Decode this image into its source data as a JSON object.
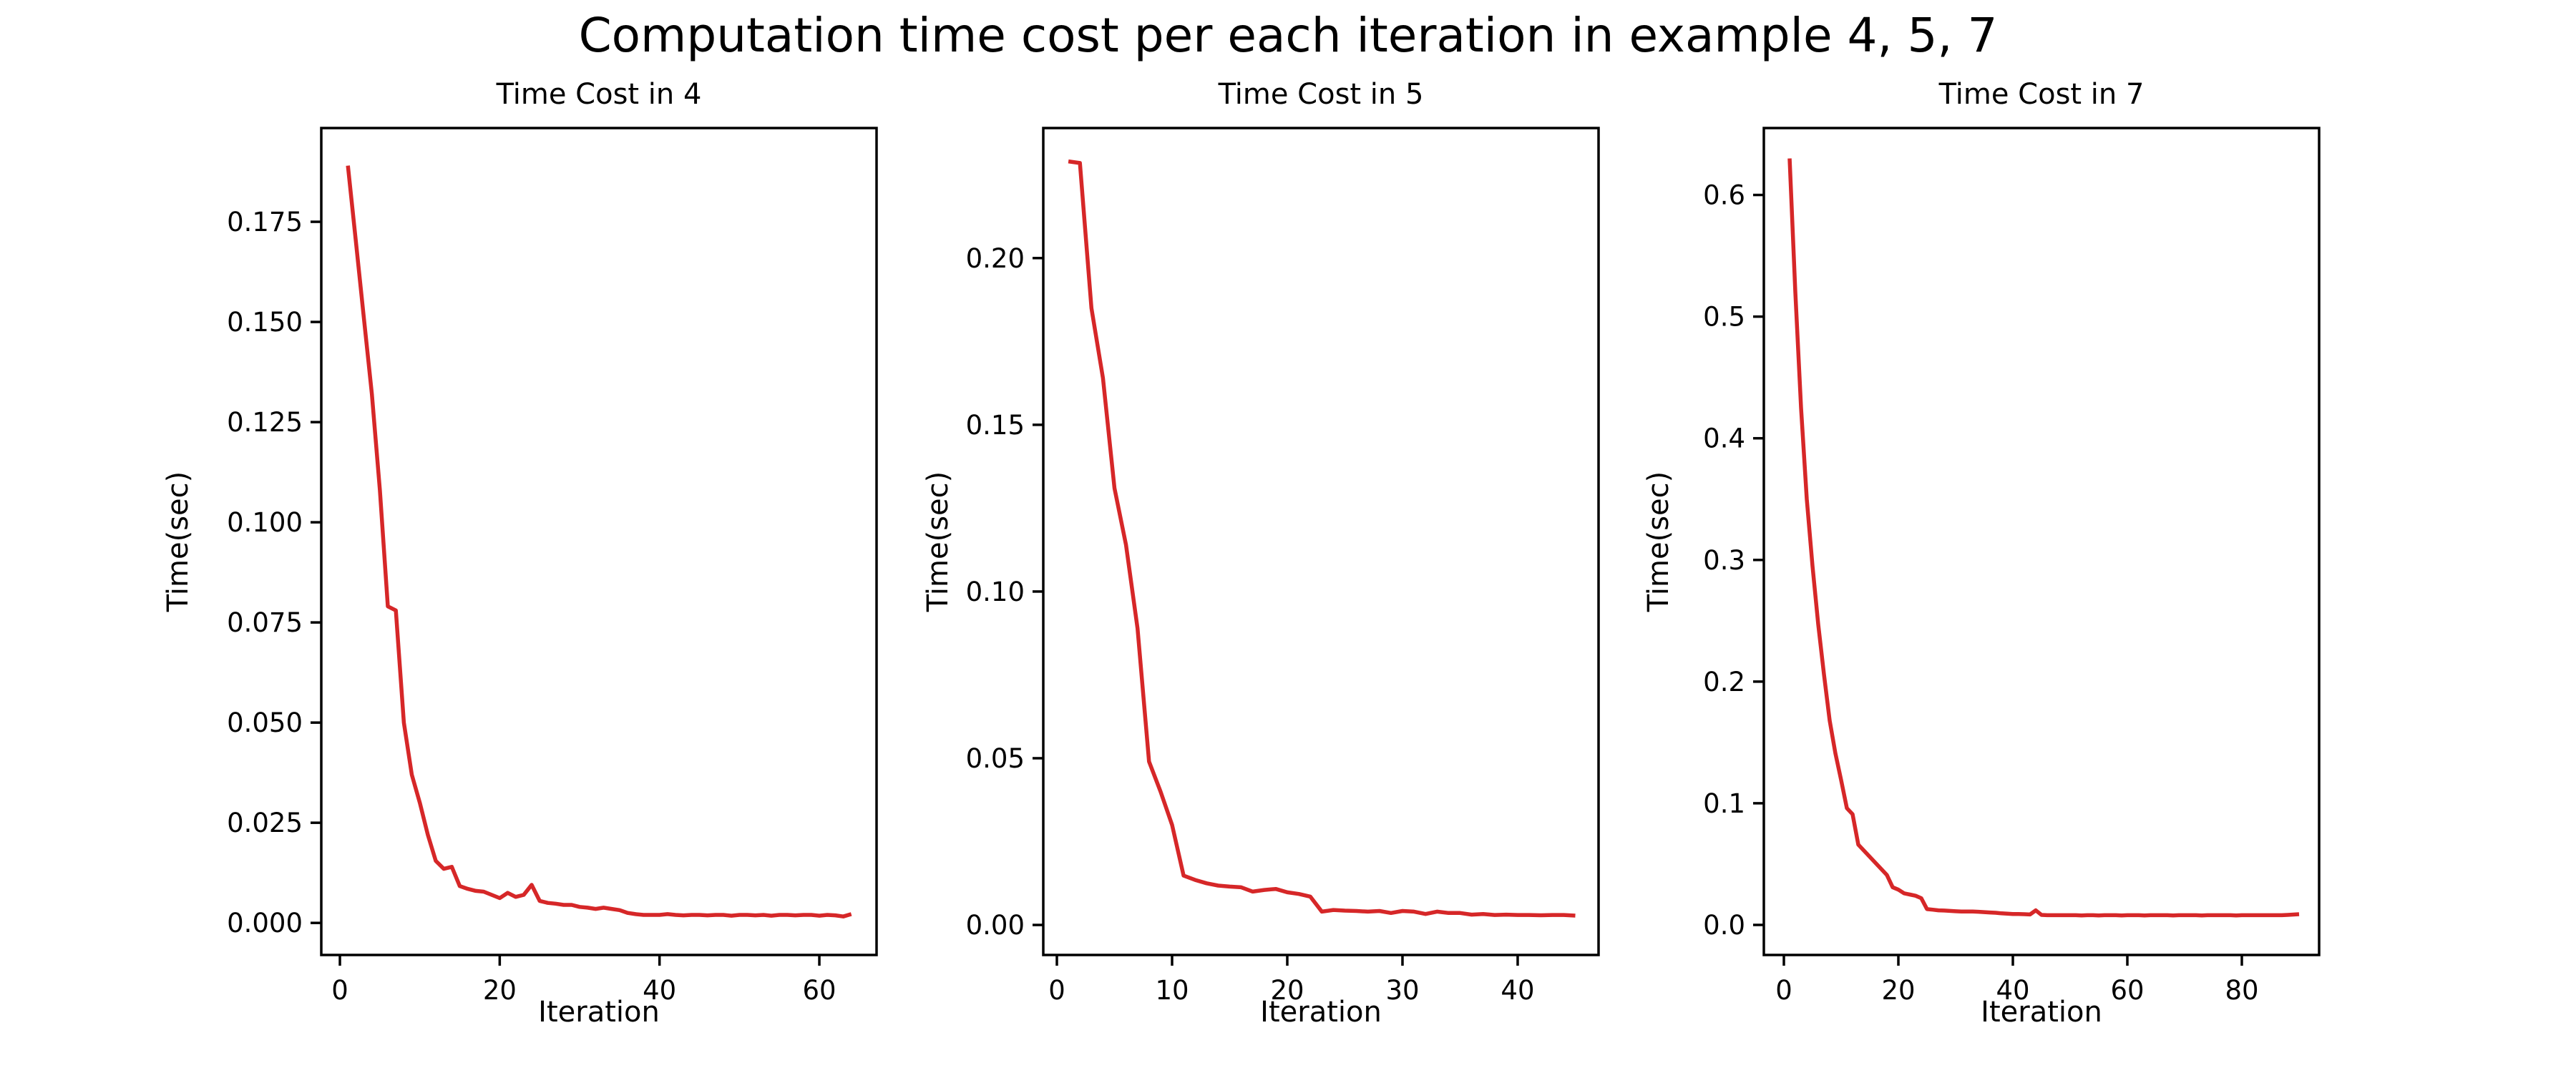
{
  "figure": {
    "title": "Computation time cost per each iteration in example 4, 5, 7",
    "background_color": "#ffffff"
  },
  "style": {
    "line_color": "#d62728",
    "frame_color": "#000000",
    "text_color": "#000000",
    "line_width": 5.5,
    "frame_width": 3.5
  },
  "chart_data": [
    {
      "type": "line",
      "title": "Time Cost in 4",
      "xlabel": "Iteration",
      "ylabel": "Time(sec)",
      "color": "#d62728",
      "legend": null,
      "grid": false,
      "xlim": [
        -2.33,
        67.16
      ],
      "ylim": [
        -0.008,
        0.1984
      ],
      "xticks": [
        0,
        20,
        40,
        60
      ],
      "ytick_values": [
        0.0,
        0.025,
        0.05,
        0.075,
        0.1,
        0.125,
        0.15,
        0.175
      ],
      "ytick_labels": [
        "0.000",
        "0.025",
        "0.050",
        "0.075",
        "0.100",
        "0.125",
        "0.150",
        "0.175"
      ],
      "x_start": 1,
      "x_step": 1,
      "y": [
        0.189,
        0.17,
        0.151,
        0.132,
        0.108,
        0.079,
        0.078,
        0.05,
        0.037,
        0.03,
        0.022,
        0.0155,
        0.0135,
        0.014,
        0.0092,
        0.0085,
        0.008,
        0.0078,
        0.007,
        0.0062,
        0.0075,
        0.0065,
        0.007,
        0.0095,
        0.0055,
        0.005,
        0.0048,
        0.0045,
        0.0045,
        0.004,
        0.0038,
        0.0035,
        0.0038,
        0.0035,
        0.0032,
        0.0025,
        0.0022,
        0.002,
        0.002,
        0.002,
        0.0022,
        0.002,
        0.0019,
        0.002,
        0.002,
        0.0019,
        0.002,
        0.002,
        0.0018,
        0.002,
        0.002,
        0.0019,
        0.002,
        0.0018,
        0.002,
        0.002,
        0.0019,
        0.002,
        0.002,
        0.0018,
        0.002,
        0.0019,
        0.0016,
        0.0022
      ]
    },
    {
      "type": "line",
      "title": "Time Cost in 5",
      "xlabel": "Iteration",
      "ylabel": "Time(sec)",
      "color": "#d62728",
      "legend": null,
      "grid": false,
      "xlim": [
        -1.18,
        47.02
      ],
      "ylim": [
        -0.009,
        0.239
      ],
      "xticks": [
        0,
        10,
        20,
        30,
        40
      ],
      "ytick_values": [
        0.0,
        0.05,
        0.1,
        0.15,
        0.2
      ],
      "ytick_labels": [
        "0.00",
        "0.05",
        "0.10",
        "0.15",
        "0.20"
      ],
      "x_start": 1,
      "x_step": 1,
      "y": [
        0.229,
        0.2285,
        0.185,
        0.164,
        0.131,
        0.114,
        0.089,
        0.049,
        0.04,
        0.03,
        0.0148,
        0.0135,
        0.0125,
        0.0118,
        0.0115,
        0.0113,
        0.01,
        0.0105,
        0.0108,
        0.0098,
        0.0093,
        0.0085,
        0.004,
        0.0045,
        0.0043,
        0.0042,
        0.004,
        0.0042,
        0.0036,
        0.0042,
        0.004,
        0.0033,
        0.004,
        0.0036,
        0.0036,
        0.0031,
        0.0033,
        0.003,
        0.0031,
        0.003,
        0.003,
        0.0029,
        0.003,
        0.003,
        0.0028
      ]
    },
    {
      "type": "line",
      "title": "Time Cost in 7",
      "xlabel": "Iteration",
      "ylabel": "Time(sec)",
      "color": "#d62728",
      "legend": null,
      "grid": false,
      "xlim": [
        -3.5,
        93.5
      ],
      "ylim": [
        -0.0247,
        0.655
      ],
      "xticks": [
        0,
        20,
        40,
        60,
        80
      ],
      "ytick_values": [
        0.0,
        0.1,
        0.2,
        0.3,
        0.4,
        0.5,
        0.6
      ],
      "ytick_labels": [
        "0.0",
        "0.1",
        "0.2",
        "0.3",
        "0.4",
        "0.5",
        "0.6"
      ],
      "x_start": 1,
      "x_step": 1,
      "y": [
        0.63,
        0.52,
        0.425,
        0.35,
        0.295,
        0.247,
        0.206,
        0.168,
        0.141,
        0.119,
        0.096,
        0.091,
        0.066,
        0.061,
        0.056,
        0.051,
        0.046,
        0.041,
        0.031,
        0.029,
        0.026,
        0.025,
        0.024,
        0.022,
        0.013,
        0.0125,
        0.012,
        0.0118,
        0.0115,
        0.0112,
        0.011,
        0.011,
        0.011,
        0.0108,
        0.0105,
        0.0102,
        0.01,
        0.0095,
        0.0092,
        0.009,
        0.009,
        0.0088,
        0.0086,
        0.012,
        0.0082,
        0.008,
        0.008,
        0.008,
        0.008,
        0.008,
        0.008,
        0.0078,
        0.008,
        0.008,
        0.0078,
        0.008,
        0.008,
        0.008,
        0.0078,
        0.008,
        0.008,
        0.008,
        0.0078,
        0.008,
        0.008,
        0.008,
        0.008,
        0.0078,
        0.008,
        0.008,
        0.008,
        0.008,
        0.0078,
        0.008,
        0.008,
        0.008,
        0.008,
        0.008,
        0.0078,
        0.008,
        0.008,
        0.008,
        0.008,
        0.008,
        0.008,
        0.008,
        0.008,
        0.0082,
        0.0085,
        0.0088
      ]
    }
  ]
}
